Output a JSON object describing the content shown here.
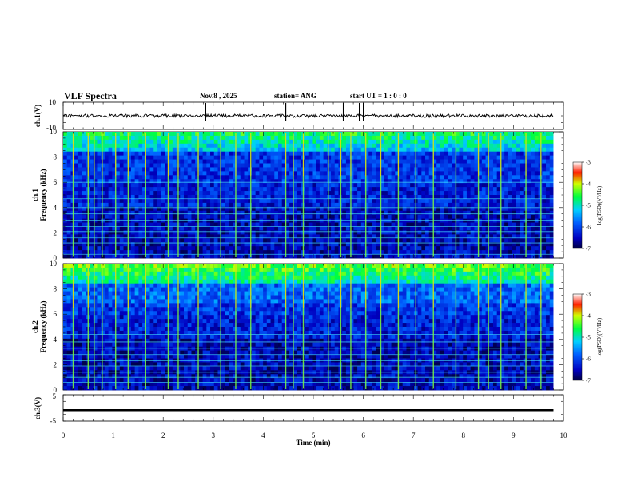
{
  "chart_data": {
    "type": "heatmap",
    "title": "VLF Spectra",
    "header": {
      "date": "Nov.8 , 2025",
      "station": "station= ANG",
      "start": "start UT = 1 : 0 : 0"
    },
    "xlabel": "Time (min)",
    "xlim": [
      0,
      10
    ],
    "x_ticks": [
      0,
      1,
      2,
      3,
      4,
      5,
      6,
      7,
      8,
      9,
      10
    ],
    "data_end_min": 9.8,
    "panels": [
      {
        "id": "ch1-waveform",
        "ylabel": "ch.1(V)",
        "ylim": [
          -10,
          10
        ],
        "y_ticks": [
          "10",
          "-10"
        ],
        "baseline_v": 0
      },
      {
        "id": "ch1-spectrogram",
        "ylabel_line1": "ch.1",
        "ylabel_line2": "Frequency (kHz)",
        "ylim": [
          0,
          10
        ],
        "y_ticks": [
          "0",
          "2",
          "4",
          "6",
          "8",
          "10"
        ],
        "colorbar": {
          "label": "log(PSD)(V²/Hz)",
          "range": [
            -7,
            -3
          ],
          "ticks": [
            "-3",
            "-4",
            "-5",
            "-6",
            "-7"
          ]
        }
      },
      {
        "id": "ch2-spectrogram",
        "ylabel_line1": "ch.2",
        "ylabel_line2": "Frequency (kHz)",
        "ylim": [
          0,
          10
        ],
        "y_ticks": [
          "0",
          "2",
          "4",
          "6",
          "8",
          "10"
        ],
        "colorbar": {
          "label": "log(PSD)(V²/Hz)",
          "range": [
            -7,
            -3
          ],
          "ticks": [
            "-3",
            "-4",
            "-5",
            "-6",
            "-7"
          ]
        }
      },
      {
        "id": "ch3-waveform",
        "ylabel": "ch.3(V)",
        "ylim": [
          -5,
          5
        ],
        "y_ticks": [
          "5",
          "-5"
        ],
        "level_v": -1
      }
    ],
    "ch1_spikes_min": [
      2.85,
      4.45,
      5.6,
      5.92,
      6.0
    ],
    "sferic_times_min": [
      0.2,
      0.5,
      0.62,
      0.78,
      1.05,
      1.3,
      1.65,
      2.1,
      2.3,
      2.7,
      3.15,
      3.45,
      3.75,
      4.45,
      4.6,
      4.8,
      5.3,
      5.55,
      5.75,
      6.05,
      6.35,
      6.7,
      7.05,
      7.4,
      7.85,
      8.3,
      8.5,
      8.75,
      9.25,
      9.55
    ],
    "ch1_tone_lines_khz": [
      0.3,
      0.8,
      1.2,
      1.6,
      2.1,
      2.5,
      3.0,
      3.5,
      4.0,
      4.7,
      6.0
    ],
    "ch2_tone_lines_khz": [
      0.6,
      1.0,
      1.4,
      1.9,
      2.3,
      2.8,
      3.3,
      3.8,
      4.4
    ]
  }
}
